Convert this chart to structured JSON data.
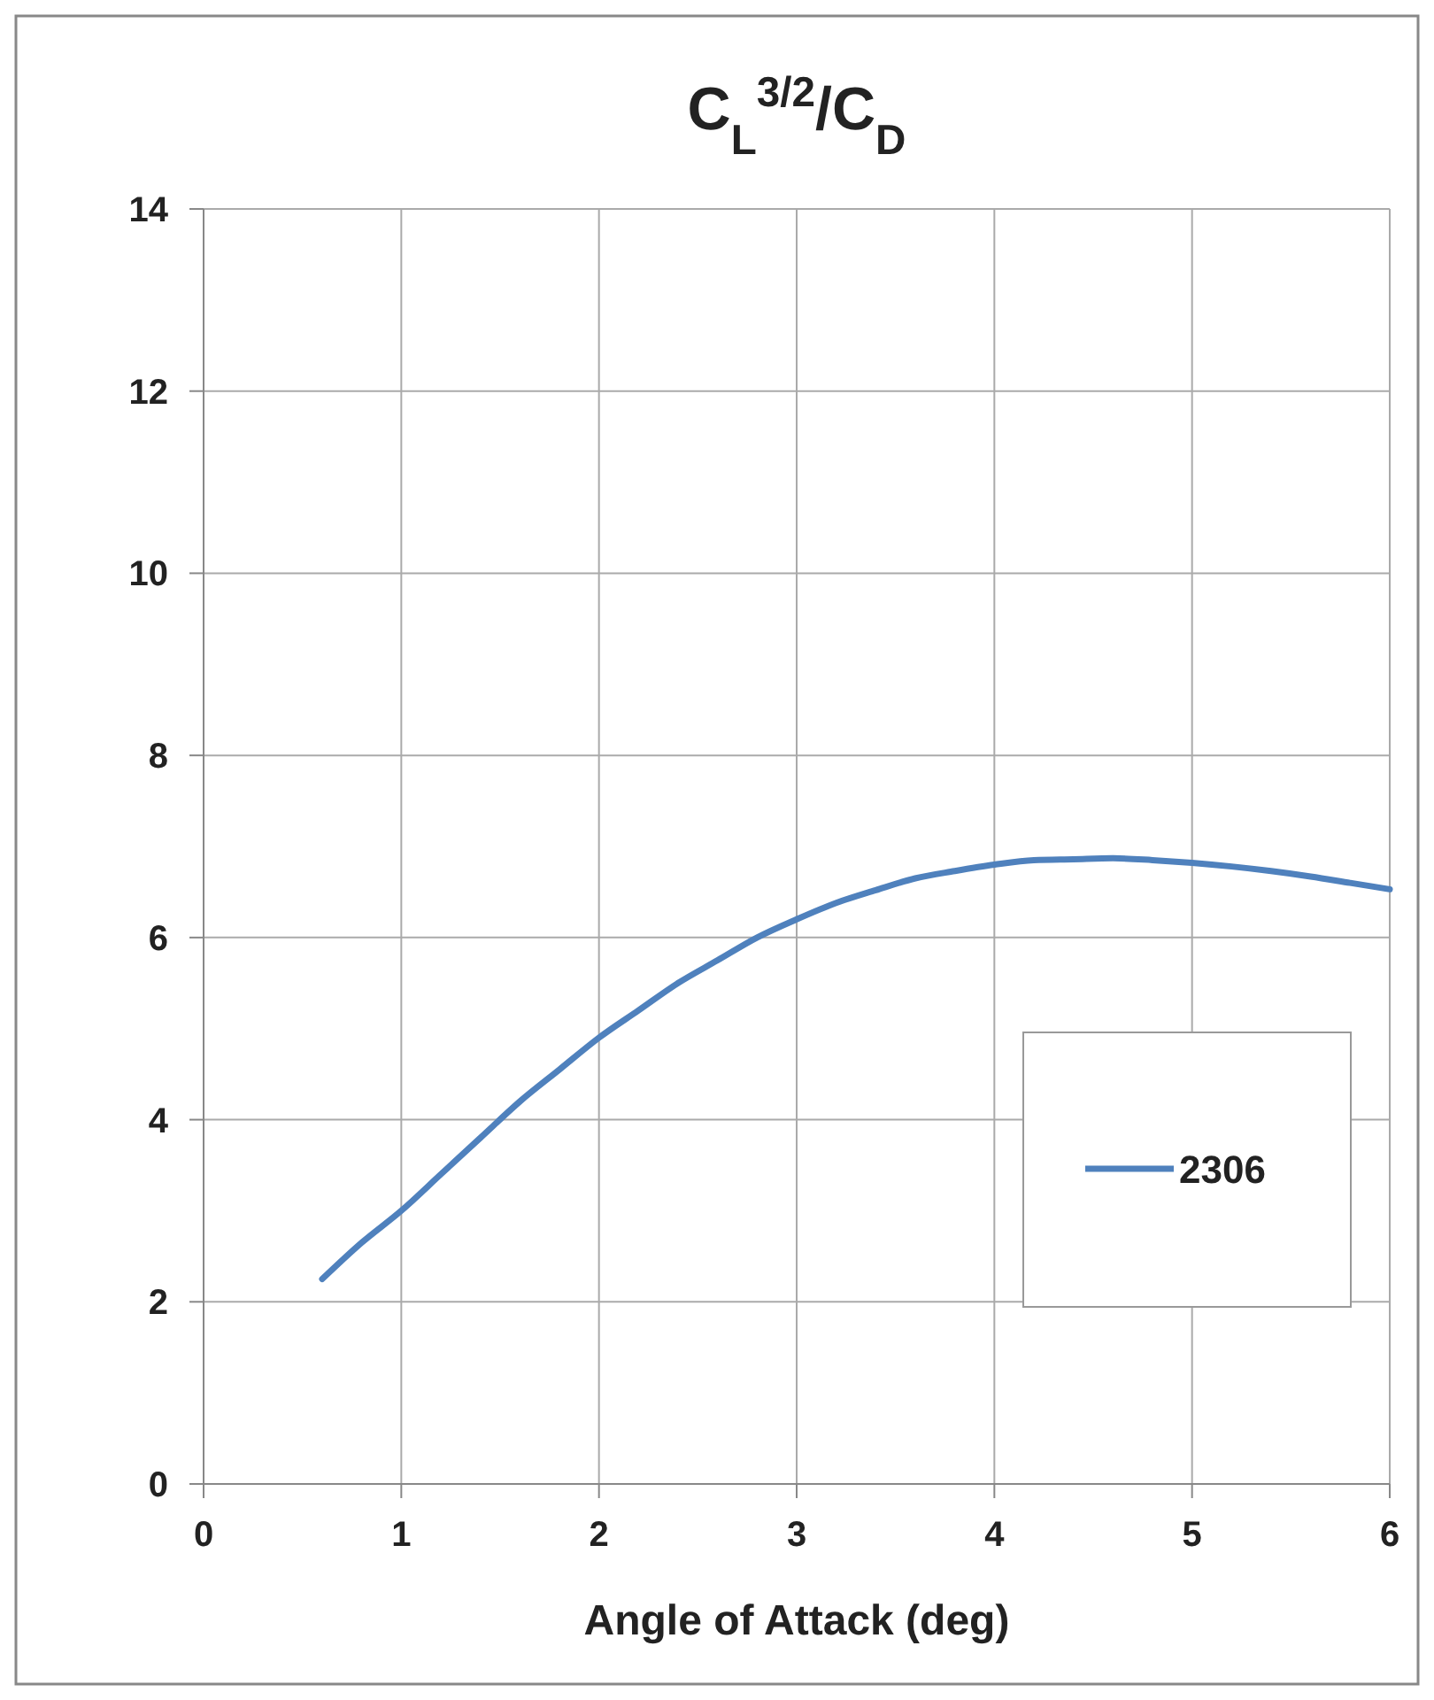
{
  "chart_data": {
    "type": "line",
    "title": "C$_{L}$$^{3/2}$/C$_{D}$",
    "xlabel": "Angle of Attack (deg)",
    "x": [
      0.6,
      0.8,
      1.0,
      1.2,
      1.4,
      1.6,
      1.8,
      2.0,
      2.2,
      2.4,
      2.6,
      2.8,
      3.0,
      3.2,
      3.4,
      3.6,
      3.8,
      4.0,
      4.2,
      4.4,
      4.6,
      4.8,
      5.0,
      5.2,
      5.4,
      5.6,
      5.8,
      6.0
    ],
    "series": [
      {
        "name": "2306",
        "color": "#4f81bd",
        "values": [
          2.25,
          2.65,
          3.0,
          3.4,
          3.8,
          4.2,
          4.55,
          4.9,
          5.2,
          5.5,
          5.75,
          6.0,
          6.2,
          6.38,
          6.52,
          6.65,
          6.73,
          6.8,
          6.85,
          6.86,
          6.87,
          6.85,
          6.82,
          6.78,
          6.73,
          6.67,
          6.6,
          6.53
        ]
      }
    ],
    "xlim": [
      0,
      6
    ],
    "xticks": [
      0,
      1,
      2,
      3,
      4,
      5,
      6
    ],
    "ylim": [
      0,
      14
    ],
    "yticks": [
      0,
      2,
      4,
      6,
      8,
      10,
      12,
      14
    ],
    "grid": true,
    "legend": "right",
    "marker": "none",
    "line_style": "solid"
  }
}
